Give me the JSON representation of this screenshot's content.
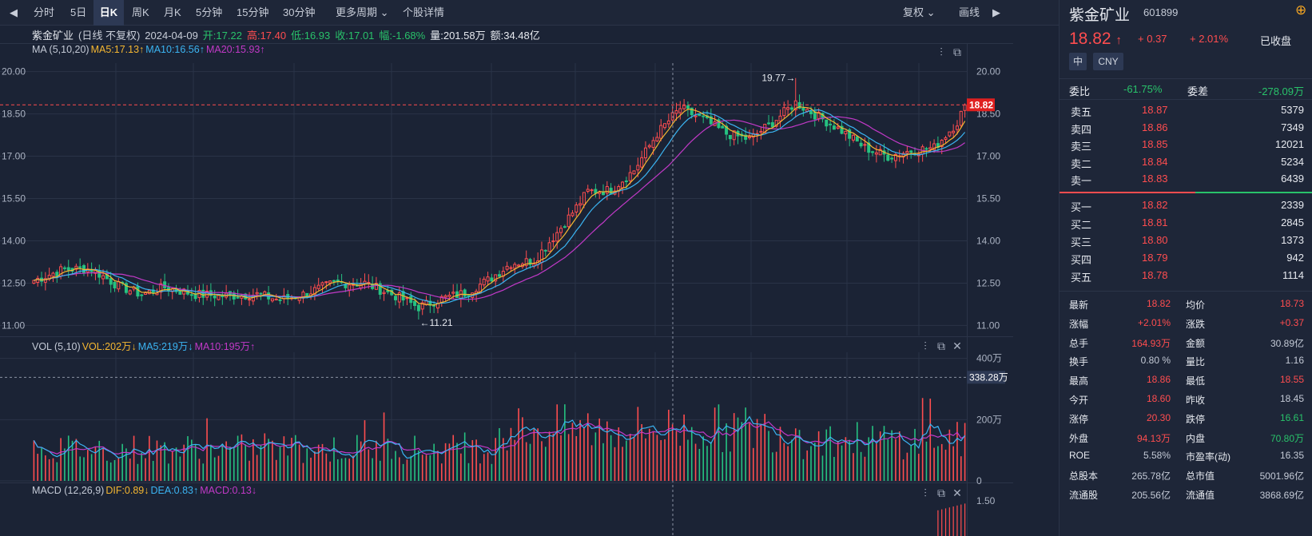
{
  "toolbar": {
    "tabs": [
      "分时",
      "5日",
      "日K",
      "周K",
      "月K",
      "5分钟",
      "15分钟",
      "30分钟",
      "更多周期",
      "个股详情"
    ],
    "active_tab": "日K",
    "fuquan": "复权",
    "huaxian": "画线"
  },
  "info": {
    "name": "紫金矿业",
    "period": "(日线 不复权)",
    "date": "2024-04-09",
    "open": "开:17.22",
    "high": "高:17.40",
    "low": "低:16.93",
    "close": "收:17.01",
    "change": "幅:-1.68%",
    "vol": "量:201.58万",
    "amount": "额:34.48亿"
  },
  "ma_legend": {
    "label": "MA (5,10,20)",
    "ma5": "MA5:17.13↑",
    "ma10": "MA10:16.56↑",
    "ma20": "MA20:15.93↑"
  },
  "vol_legend": {
    "label": "VOL (5,10)",
    "vol": "VOL:202万↓",
    "ma5": "MA5:219万↓",
    "ma10": "MA10:195万↑"
  },
  "macd_legend": {
    "label": "MACD (12,26,9)",
    "dif": "DIF:0.89↓",
    "dea": "DEA:0.83↑",
    "macd": "MACD:0.13↓"
  },
  "colors": {
    "up": "#ff4d4f",
    "down": "#26c281",
    "ma5": "#f5b731",
    "ma10": "#3bb4f2",
    "ma20": "#c139c7",
    "bg": "#1b2335"
  },
  "chart_data": [
    {
      "type": "candlestick",
      "ylim": [
        11.0,
        20.0
      ],
      "ticks": [
        "20.00",
        "18.50",
        "17.00",
        "15.50",
        "14.00",
        "12.50",
        "11.00"
      ],
      "tick_values": [
        20.0,
        18.5,
        17.0,
        15.5,
        14.0,
        12.5,
        11.0
      ],
      "current_price": "18.82",
      "current_value": 18.82,
      "max_label": "19.77→",
      "max_value": 19.77,
      "min_label": "←11.21",
      "min_value": 11.21,
      "anchors": [
        [
          0,
          12.6
        ],
        [
          8,
          13.0
        ],
        [
          15,
          13.0
        ],
        [
          22,
          12.4
        ],
        [
          28,
          12.1
        ],
        [
          34,
          12.35
        ],
        [
          42,
          12.1
        ],
        [
          50,
          12.05
        ],
        [
          58,
          12.1
        ],
        [
          64,
          11.9
        ],
        [
          70,
          12.1
        ],
        [
          78,
          12.5
        ],
        [
          86,
          12.5
        ],
        [
          94,
          12.05
        ],
        [
          100,
          11.65
        ],
        [
          106,
          11.95
        ],
        [
          112,
          12.15
        ],
        [
          118,
          12.6
        ],
        [
          124,
          13.2
        ],
        [
          130,
          13.3
        ],
        [
          136,
          14.3
        ],
        [
          140,
          15.0
        ],
        [
          144,
          15.75
        ],
        [
          150,
          15.8
        ],
        [
          156,
          16.5
        ],
        [
          162,
          17.8
        ],
        [
          168,
          18.7
        ],
        [
          174,
          18.3
        ],
        [
          180,
          17.8
        ],
        [
          186,
          17.6
        ],
        [
          192,
          18.2
        ],
        [
          198,
          18.9
        ],
        [
          204,
          18.4
        ],
        [
          210,
          17.9
        ],
        [
          216,
          17.3
        ],
        [
          222,
          17.0
        ],
        [
          228,
          17.2
        ],
        [
          234,
          17.3
        ],
        [
          240,
          18.2
        ],
        [
          242,
          18.82
        ]
      ]
    },
    {
      "type": "bar",
      "name": "VOL",
      "ticks": [
        "400万",
        "200万",
        "0"
      ],
      "tick_values": [
        400,
        200,
        0
      ],
      "ylim": [
        0,
        420
      ],
      "ref_label": "338.28万",
      "ref_value": 338.28
    },
    {
      "type": "bar",
      "name": "MACD",
      "ticks": [
        "1.50"
      ],
      "tick_values": [
        1.5
      ]
    }
  ],
  "right": {
    "name": "紫金矿业",
    "code": "601899",
    "price": "18.82",
    "change": "+ 0.37",
    "pct": "+ 2.01%",
    "status": "已收盘",
    "tags": [
      "中",
      "CNY"
    ],
    "webi_label": "委比",
    "webi": "-61.75%",
    "weicha_label": "委差",
    "weicha": "-278.09万",
    "asks": [
      {
        "label": "卖五",
        "price": "18.87",
        "vol": "5379"
      },
      {
        "label": "卖四",
        "price": "18.86",
        "vol": "7349"
      },
      {
        "label": "卖三",
        "price": "18.85",
        "vol": "12021"
      },
      {
        "label": "卖二",
        "price": "18.84",
        "vol": "5234"
      },
      {
        "label": "卖一",
        "price": "18.83",
        "vol": "6439"
      }
    ],
    "bids": [
      {
        "label": "买一",
        "price": "18.82",
        "vol": "2339"
      },
      {
        "label": "买二",
        "price": "18.81",
        "vol": "2845"
      },
      {
        "label": "买三",
        "price": "18.80",
        "vol": "1373"
      },
      {
        "label": "买四",
        "price": "18.79",
        "vol": "942"
      },
      {
        "label": "买五",
        "price": "18.78",
        "vol": "1114"
      }
    ],
    "stats": [
      [
        {
          "label": "最新",
          "value": "18.82",
          "color": "red"
        },
        {
          "label": "均价",
          "value": "18.73",
          "color": "red"
        }
      ],
      [
        {
          "label": "涨幅",
          "value": "+2.01%",
          "color": "red"
        },
        {
          "label": "涨跌",
          "value": "+0.37",
          "color": "red"
        }
      ],
      [
        {
          "label": "总手",
          "value": "164.93万",
          "color": "red"
        },
        {
          "label": "金额",
          "value": "30.89亿",
          "color": "grey"
        }
      ],
      [
        {
          "label": "换手",
          "value": "0.80 %",
          "color": "grey"
        },
        {
          "label": "量比",
          "value": "1.16",
          "color": "grey"
        }
      ],
      [
        {
          "label": "最高",
          "value": "18.86",
          "color": "red"
        },
        {
          "label": "最低",
          "value": "18.55",
          "color": "red"
        }
      ],
      [
        {
          "label": "今开",
          "value": "18.60",
          "color": "red"
        },
        {
          "label": "昨收",
          "value": "18.45",
          "color": "grey"
        }
      ],
      [
        {
          "label": "涨停",
          "value": "20.30",
          "color": "red"
        },
        {
          "label": "跌停",
          "value": "16.61",
          "color": "green"
        }
      ],
      [
        {
          "label": "外盘",
          "value": "94.13万",
          "color": "red"
        },
        {
          "label": "内盘",
          "value": "70.80万",
          "color": "green"
        }
      ],
      [
        {
          "label": "ROE",
          "value": "5.58%",
          "color": "grey"
        },
        {
          "label": "市盈率(动)",
          "value": "16.35",
          "color": "grey"
        }
      ],
      [
        {
          "label": "总股本",
          "value": "265.78亿",
          "color": "grey"
        },
        {
          "label": "总市值",
          "value": "5001.96亿",
          "color": "grey"
        }
      ],
      [
        {
          "label": "流通股",
          "value": "205.56亿",
          "color": "grey"
        },
        {
          "label": "流通值",
          "value": "3868.69亿",
          "color": "grey"
        }
      ]
    ]
  }
}
